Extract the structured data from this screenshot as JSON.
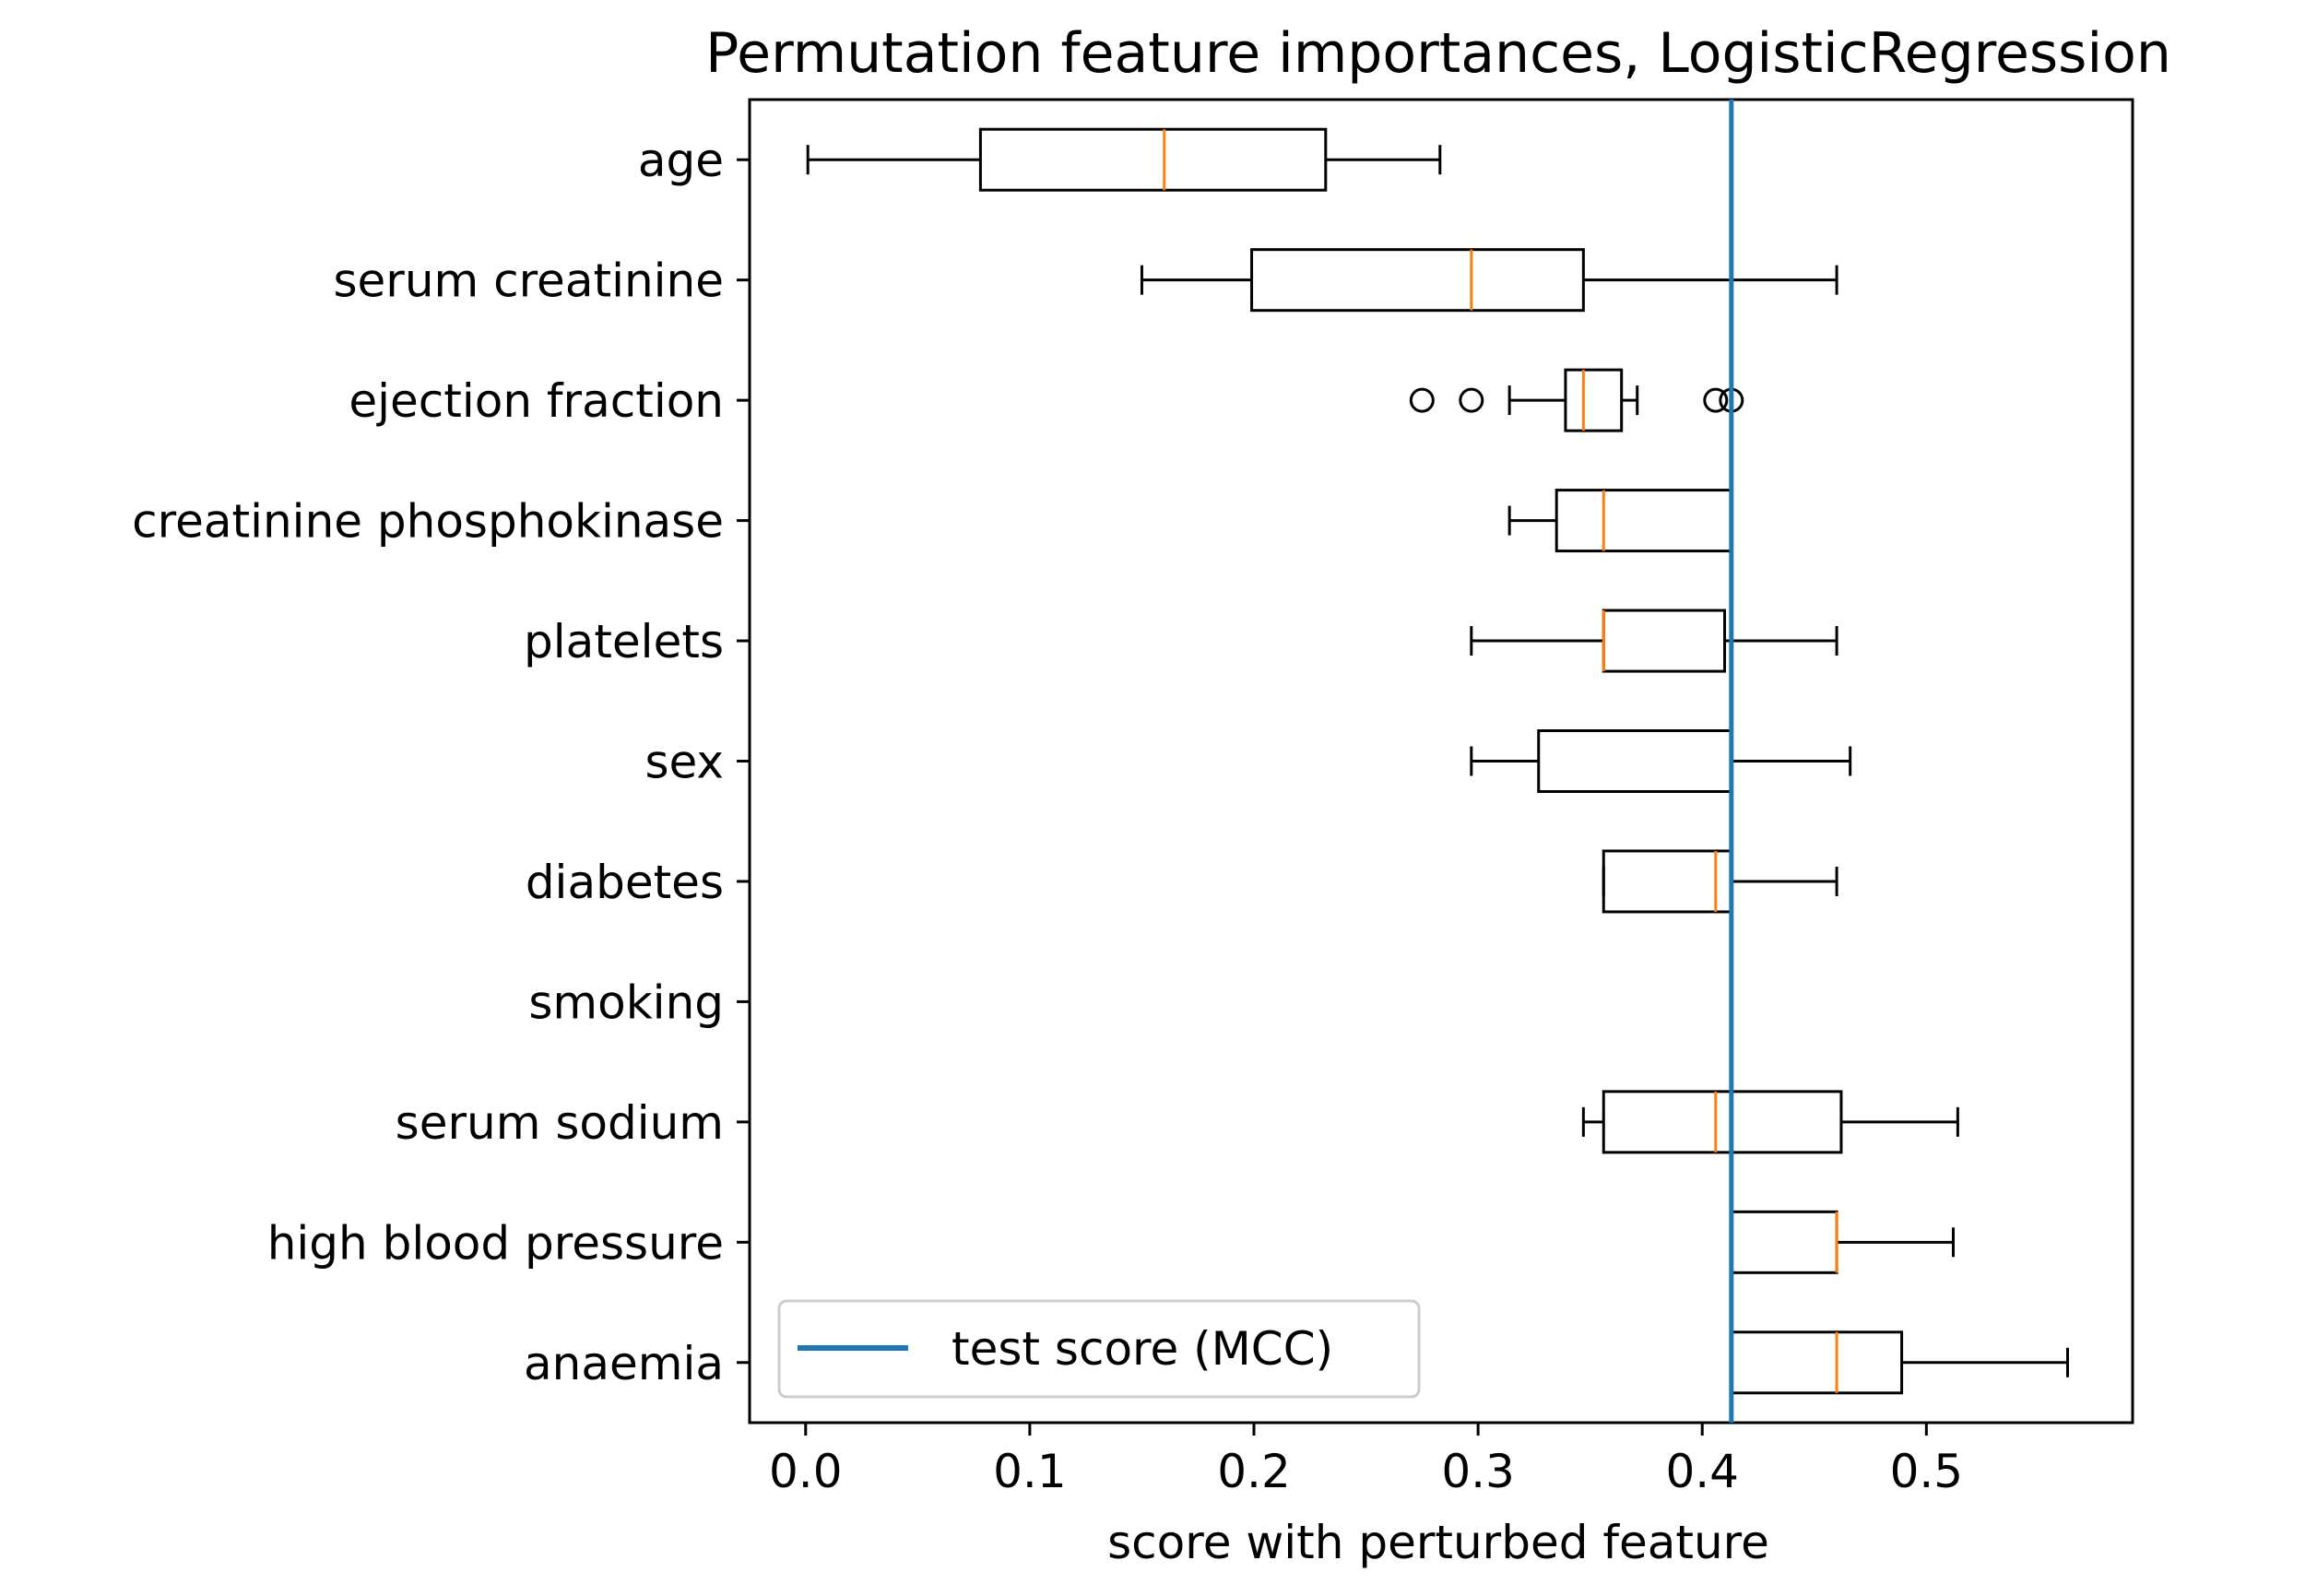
{
  "chart_data": {
    "type": "boxplot",
    "orientation": "horizontal",
    "title": "Permutation feature importances, LogisticRegression",
    "xlabel": "score with perturbed feature",
    "ylabel": "",
    "xlim": [
      -0.025,
      0.592
    ],
    "xticks": [
      0.0,
      0.1,
      0.2,
      0.3,
      0.4,
      0.5
    ],
    "xtick_labels": [
      "0.0",
      "0.1",
      "0.2",
      "0.3",
      "0.4",
      "0.5"
    ],
    "grid": false,
    "colors": {
      "box": "#000000",
      "median": "#ff7f0e",
      "reference_line": "#1f77b4"
    },
    "reference_line": {
      "label": "test score (MCC)",
      "value": 0.413
    },
    "legend": {
      "position": "lower-left",
      "entries": [
        "test score (MCC)"
      ]
    },
    "categories": [
      "age",
      "serum creatinine",
      "ejection fraction",
      "creatinine phosphokinase",
      "platelets",
      "sex",
      "diabetes",
      "smoking",
      "serum sodium",
      "high blood pressure",
      "anaemia"
    ],
    "boxes": [
      {
        "name": "age",
        "whislo": 0.001,
        "q1": 0.078,
        "med": 0.16,
        "q3": 0.232,
        "whishi": 0.283,
        "fliers": []
      },
      {
        "name": "serum creatinine",
        "whislo": 0.15,
        "q1": 0.199,
        "med": 0.297,
        "q3": 0.347,
        "whishi": 0.46,
        "fliers": []
      },
      {
        "name": "ejection fraction",
        "whislo": 0.314,
        "q1": 0.339,
        "med": 0.347,
        "q3": 0.364,
        "whishi": 0.371,
        "fliers": [
          0.275,
          0.297,
          0.406,
          0.413
        ]
      },
      {
        "name": "creatinine phosphokinase",
        "whislo": 0.314,
        "q1": 0.335,
        "med": 0.356,
        "q3": 0.413,
        "whishi": 0.413,
        "fliers": []
      },
      {
        "name": "platelets",
        "whislo": 0.297,
        "q1": 0.356,
        "med": 0.356,
        "q3": 0.41,
        "whishi": 0.46,
        "fliers": []
      },
      {
        "name": "sex",
        "whislo": 0.297,
        "q1": 0.327,
        "med": 0.413,
        "q3": 0.413,
        "whishi": 0.466,
        "fliers": []
      },
      {
        "name": "diabetes",
        "whislo": 0.356,
        "q1": 0.356,
        "med": 0.406,
        "q3": 0.413,
        "whishi": 0.46,
        "fliers": []
      },
      {
        "name": "smoking",
        "whislo": 0.413,
        "q1": 0.413,
        "med": 0.413,
        "q3": 0.413,
        "whishi": 0.413,
        "fliers": []
      },
      {
        "name": "serum sodium",
        "whislo": 0.347,
        "q1": 0.356,
        "med": 0.406,
        "q3": 0.462,
        "whishi": 0.514,
        "fliers": []
      },
      {
        "name": "high blood pressure",
        "whislo": 0.413,
        "q1": 0.413,
        "med": 0.46,
        "q3": 0.46,
        "whishi": 0.512,
        "fliers": []
      },
      {
        "name": "anaemia",
        "whislo": 0.413,
        "q1": 0.413,
        "med": 0.46,
        "q3": 0.489,
        "whishi": 0.563,
        "fliers": []
      }
    ]
  }
}
